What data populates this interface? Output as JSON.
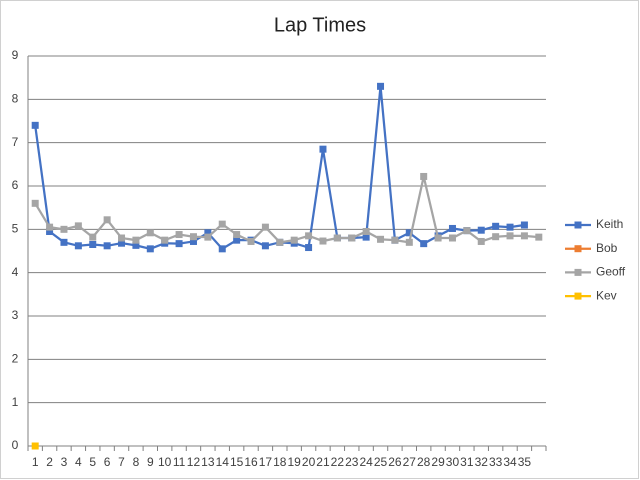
{
  "chart_data": {
    "type": "line",
    "title": "Lap Times",
    "categories": [
      "1",
      "2",
      "3",
      "4",
      "5",
      "6",
      "7",
      "8",
      "9",
      "10",
      "11",
      "12",
      "13",
      "14",
      "15",
      "16",
      "17",
      "18",
      "19",
      "20",
      "21",
      "22",
      "23",
      "24",
      "25",
      "26",
      "27",
      "28",
      "29",
      "30",
      "31",
      "32",
      "33",
      "34",
      "35",
      null
    ],
    "series": [
      {
        "name": "Keith",
        "color": "#4472c4",
        "values": [
          7.4,
          4.95,
          4.7,
          4.62,
          4.65,
          4.62,
          4.68,
          4.63,
          4.55,
          4.68,
          4.67,
          4.72,
          4.92,
          4.55,
          4.75,
          4.75,
          4.62,
          4.7,
          4.68,
          4.58,
          6.85,
          4.8,
          4.8,
          4.82,
          8.3,
          4.75,
          4.92,
          4.67,
          4.85,
          5.02,
          4.97,
          4.98,
          5.07,
          5.05,
          5.1,
          null
        ]
      },
      {
        "name": "Bob",
        "color": "#ed7d31",
        "values": [
          null,
          null,
          null,
          null,
          null,
          null,
          null,
          null,
          null,
          null,
          null,
          null,
          null,
          null,
          null,
          null,
          null,
          null,
          null,
          null,
          null,
          null,
          null,
          null,
          null,
          null,
          null,
          null,
          null,
          null,
          null,
          null,
          null,
          null,
          null,
          null
        ]
      },
      {
        "name": "Geoff",
        "color": "#a5a5a5",
        "values": [
          5.6,
          5.05,
          5.0,
          5.08,
          4.82,
          5.22,
          4.8,
          4.75,
          4.92,
          4.75,
          4.88,
          4.83,
          4.82,
          5.12,
          4.88,
          4.72,
          5.05,
          4.7,
          4.75,
          4.85,
          4.73,
          4.8,
          4.8,
          4.95,
          4.77,
          4.75,
          4.7,
          6.22,
          4.8,
          4.8,
          4.97,
          4.72,
          4.83,
          4.85,
          4.85,
          4.82
        ]
      },
      {
        "name": "Kev",
        "color": "#ffc000",
        "values": [
          0,
          null,
          null,
          null,
          null,
          null,
          null,
          null,
          null,
          null,
          null,
          null,
          null,
          null,
          null,
          null,
          null,
          null,
          null,
          null,
          null,
          null,
          null,
          null,
          null,
          null,
          null,
          null,
          null,
          null,
          null,
          null,
          null,
          null,
          null,
          null
        ]
      }
    ],
    "ylim": [
      0,
      9
    ],
    "yticks": [
      0,
      1,
      2,
      3,
      4,
      5,
      6,
      7,
      8,
      9
    ],
    "grid": true,
    "legend": "right"
  }
}
